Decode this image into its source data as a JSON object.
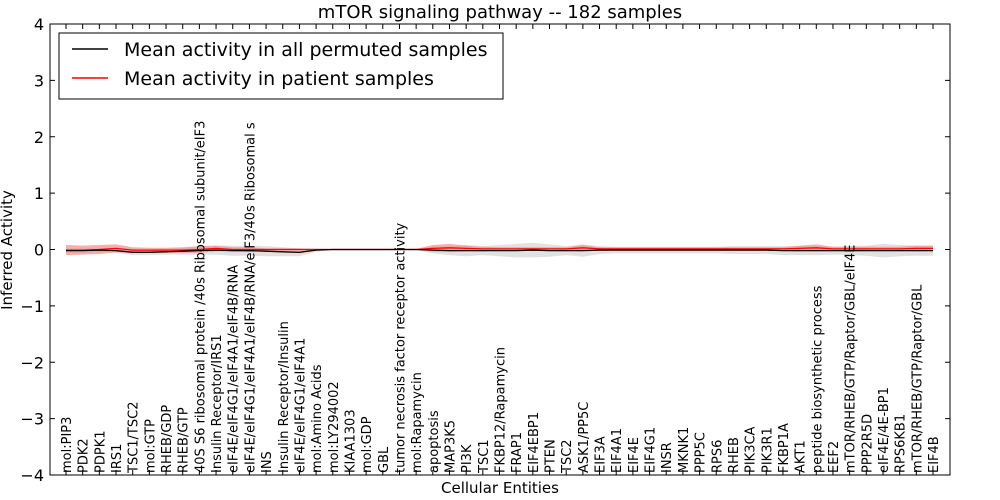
{
  "chart_data": {
    "type": "line",
    "title": "mTOR signaling pathway -- 182 samples",
    "xlabel": "Cellular Entities",
    "ylabel": "Inferred Activity",
    "ylim": [
      -4,
      4
    ],
    "yticks": [
      -4,
      -3,
      -2,
      -1,
      0,
      1,
      2,
      3,
      4
    ],
    "grid": false,
    "legend_position": "top-left",
    "categories": [
      "mol:PIP3",
      "PDK2",
      "PDPK1",
      "IRS1",
      "TSC1/TSC2",
      "mol:GTP",
      "RHEB/GDP",
      "RHEB/GTP",
      "40S S6 ribosomal protein /40s Ribosomal subunit/eIF3",
      "Insulin Receptor/IRS1",
      "eIF4E/eIF4G1/eIF4A1/eIF4B/RNA",
      "eIF4E/eIF4G1/eIF4A1/eIF4B/RNA/eIF3/40s Ribosomal s",
      "INS",
      "Insulin Receptor/Insulin",
      "eIF4E/eIF4G1/eIF4A1",
      "mol:Amino Acids",
      "mol:LY294002",
      "KIAA1303",
      "mol:GDP",
      "GBL",
      "tumor necrosis factor receptor activity",
      "mol:Rapamycin",
      "apoptosis",
      "MAP3K5",
      "PI3K",
      "TSC1",
      "FKBP12/Rapamycin",
      "FRAP1",
      "EIF4EBP1",
      "PTEN",
      "TSC2",
      "ASK1/PP5C",
      "EIF3A",
      "EIF4A1",
      "EIF4E",
      "EIF4G1",
      "INSR",
      "MKNK1",
      "PPP5C",
      "RPS6",
      "RHEB",
      "PIK3CA",
      "PIK3R1",
      "FKBP1A",
      "AKT1",
      "peptide biosynthetic process",
      "EEF2",
      "mTOR/RHEB/GTP/Raptor/GBL/eIF4E",
      "PPP2R5D",
      "eIF4E/4E-BP1",
      "RPS6KB1",
      "mTOR/RHEB/GTP/Raptor/GBL",
      "EIF4B"
    ],
    "series": [
      {
        "name": "Mean activity in all permuted samples",
        "color": "#000000",
        "band_color": "#bdbdbd",
        "values": [
          -0.02,
          -0.02,
          -0.01,
          -0.02,
          -0.05,
          -0.05,
          -0.04,
          -0.03,
          -0.02,
          -0.01,
          -0.02,
          -0.02,
          -0.03,
          -0.04,
          -0.05,
          -0.01,
          0,
          0,
          0,
          0,
          0,
          0,
          -0.01,
          -0.02,
          -0.02,
          -0.02,
          -0.02,
          -0.02,
          -0.01,
          -0.02,
          -0.02,
          -0.02,
          -0.01,
          -0.01,
          -0.01,
          -0.01,
          -0.01,
          -0.01,
          -0.01,
          -0.01,
          -0.01,
          -0.01,
          -0.01,
          -0.02,
          -0.02,
          -0.02,
          -0.02,
          -0.02,
          -0.02,
          -0.02,
          -0.02,
          -0.02,
          -0.02
        ],
        "band": [
          0.04,
          0.04,
          0.04,
          0.04,
          0.05,
          0.05,
          0.05,
          0.06,
          0.07,
          0.08,
          0.09,
          0.09,
          0.09,
          0.08,
          0.07,
          0.03,
          0.01,
          0.01,
          0.01,
          0.01,
          0.01,
          0.01,
          0.06,
          0.08,
          0.1,
          0.08,
          0.1,
          0.12,
          0.13,
          0.11,
          0.08,
          0.11,
          0.07,
          0.06,
          0.06,
          0.06,
          0.06,
          0.06,
          0.06,
          0.06,
          0.07,
          0.07,
          0.07,
          0.08,
          0.08,
          0.08,
          0.07,
          0.08,
          0.09,
          0.12,
          0.1,
          0.09,
          0.09
        ]
      },
      {
        "name": "Mean activity in patient samples",
        "color": "#ff0000",
        "band_color": "#f28b8b",
        "values": [
          -0.01,
          -0.01,
          0,
          0.02,
          -0.01,
          -0.01,
          -0.01,
          -0.01,
          0,
          0.02,
          0,
          0,
          0,
          0,
          0,
          0,
          0,
          0,
          0,
          0,
          0,
          0,
          0.02,
          0.03,
          0.02,
          0.01,
          0.01,
          0.01,
          0.01,
          0.01,
          0.01,
          0.03,
          0.01,
          0.01,
          0.01,
          0.01,
          0.01,
          0.01,
          0.01,
          0.01,
          0.01,
          0.01,
          0.01,
          0.01,
          0.02,
          0.03,
          0.01,
          0.01,
          0.01,
          0.01,
          0.01,
          0.02,
          0.02
        ],
        "band": [
          0.09,
          0.08,
          0.08,
          0.07,
          0.05,
          0.04,
          0.04,
          0.05,
          0.06,
          0.05,
          0.04,
          0.04,
          0.02,
          0.02,
          0.02,
          0.01,
          0.01,
          0.01,
          0.01,
          0.01,
          0.01,
          0.01,
          0.06,
          0.07,
          0.05,
          0.04,
          0.03,
          0.03,
          0.03,
          0.03,
          0.03,
          0.05,
          0.03,
          0.03,
          0.03,
          0.03,
          0.03,
          0.03,
          0.03,
          0.03,
          0.03,
          0.03,
          0.03,
          0.03,
          0.05,
          0.06,
          0.04,
          0.04,
          0.04,
          0.04,
          0.04,
          0.05,
          0.05
        ]
      }
    ]
  }
}
